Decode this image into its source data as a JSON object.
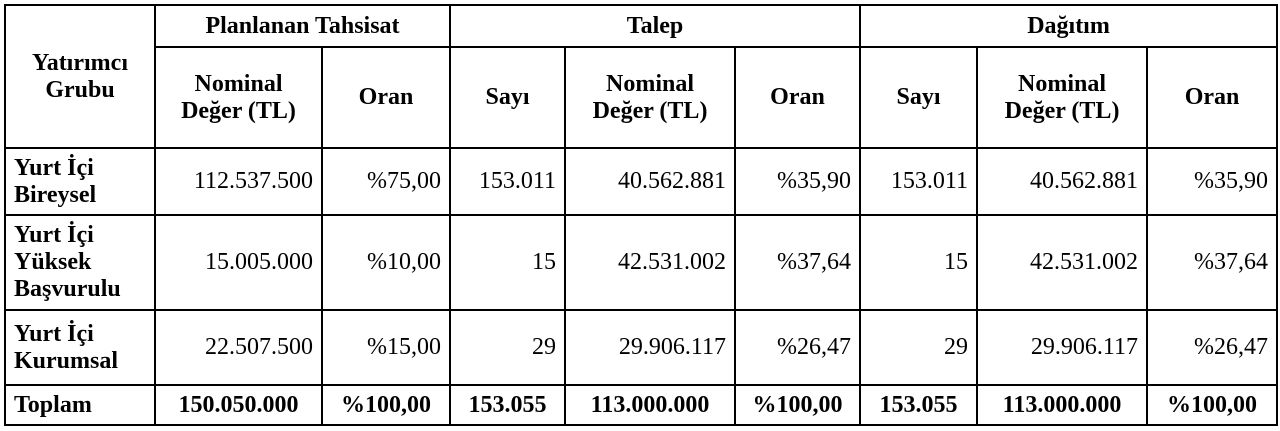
{
  "table": {
    "group_header": "Yatırımcı Grubu",
    "groups": [
      "Planlanan Tahsisat",
      "Talep",
      "Dağıtım"
    ],
    "subheaders": [
      "Nominal Değer (TL)",
      "Oran",
      "Sayı",
      "Nominal Değer (TL)",
      "Oran",
      "Sayı",
      "Nominal Değer (TL)",
      "Oran"
    ],
    "rows": [
      [
        "Yurt İçi Bireysel",
        "112.537.500",
        "%75,00",
        "153.011",
        "40.562.881",
        "%35,90",
        "153.011",
        "40.562.881",
        "%35,90"
      ],
      [
        "Yurt İçi Yüksek Başvurulu",
        "15.005.000",
        "%10,00",
        "15",
        "42.531.002",
        "%37,64",
        "15",
        "42.531.002",
        "%37,64"
      ],
      [
        "Yurt İçi Kurumsal",
        "22.507.500",
        "%15,00",
        "29",
        "29.906.117",
        "%26,47",
        "29",
        "29.906.117",
        "%26,47"
      ]
    ],
    "total": [
      "Toplam",
      "150.050.000",
      "%100,00",
      "153.055",
      "113.000.000",
      "%100,00",
      "153.055",
      "113.000.000",
      "%100,00"
    ]
  }
}
